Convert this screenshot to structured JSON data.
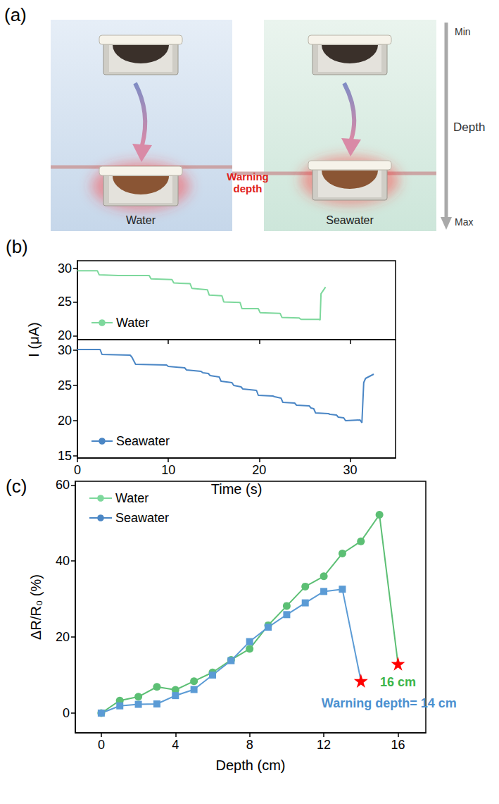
{
  "panel_a": {
    "panel": "(a)",
    "scenes": [
      "Water",
      "Seawater"
    ],
    "warning_label": "Warning depth",
    "depth_axis": {
      "title": "Depth",
      "top_label": "Min",
      "bottom_label": "Max"
    }
  },
  "chart_data": [
    {
      "panel": "(b)",
      "type": "line",
      "xlabel": "Time (s)",
      "ylabel": "I (μA)",
      "xlim": [
        0,
        35
      ],
      "xticks": [
        0,
        10,
        20,
        30
      ],
      "grid": false,
      "legend": "lower left",
      "subplots": [
        {
          "tick_labels": "y",
          "ylim": [
            19.4,
            31.1
          ],
          "yticks": [
            20,
            25,
            30
          ],
          "series": [
            {
              "name": "Water",
              "color": "#7dd89c",
              "x": [
                0,
                2.2,
                2.4,
                4.5,
                7.9,
                8.1,
                10.4,
                10.6,
                12.4,
                12.6,
                14.3,
                14.5,
                15.9,
                16.1,
                17.9,
                18.1,
                19.9,
                20.1,
                22.3,
                22.5,
                24.4,
                24.6,
                26.6,
                26.7,
                26.8,
                27.3
              ],
              "values": [
                29.6,
                29.6,
                29.0,
                28.9,
                28.9,
                28.4,
                28.3,
                27.8,
                27.7,
                27.0,
                26.8,
                26.0,
                25.9,
                25.0,
                24.9,
                24.0,
                24.0,
                23.4,
                23.3,
                22.7,
                22.6,
                22.4,
                22.4,
                22.3,
                26.2,
                27.2
              ]
            }
          ]
        },
        {
          "ylim": [
            14.7,
            31.5
          ],
          "yticks": [
            15,
            20,
            25,
            30
          ],
          "series": [
            {
              "name": "Seawater",
              "color": "#4a86c5",
              "x": [
                0,
                2.5,
                2.7,
                5.8,
                6.0,
                6.4,
                9.8,
                10.0,
                11.8,
                12.0,
                13.6,
                13.8,
                14.4,
                14.6,
                15.6,
                15.8,
                17.0,
                17.2,
                18.0,
                18.2,
                19.7,
                19.9,
                21.5,
                21.7,
                22.4,
                22.6,
                23.9,
                24.1,
                25.5,
                25.7,
                26.0,
                26.2,
                27.6,
                27.8,
                28.5,
                28.7,
                29.3,
                29.5,
                31.1,
                31.3,
                31.5,
                31.7,
                32.6
              ],
              "values": [
                30.1,
                30.1,
                29.4,
                29.3,
                29.0,
                28.0,
                27.9,
                27.7,
                27.5,
                27.2,
                27.0,
                26.8,
                26.7,
                26.4,
                26.2,
                25.6,
                25.4,
                25.0,
                24.8,
                24.5,
                24.3,
                23.6,
                23.5,
                23.4,
                23.2,
                22.6,
                22.5,
                22.2,
                22.1,
                21.8,
                21.7,
                21.1,
                21.0,
                20.9,
                20.8,
                20.5,
                20.4,
                20.0,
                20.1,
                19.7,
                25.4,
                26.0,
                26.6
              ]
            }
          ]
        }
      ]
    },
    {
      "panel": "(c)",
      "type": "line",
      "xlabel": "Depth (cm)",
      "ylabel": "ΔR/R₀ (%)",
      "xlim": [
        -1.4,
        17.5
      ],
      "xticks": [
        0,
        4,
        8,
        12,
        16
      ],
      "ylim": [
        -5.2,
        61
      ],
      "yticks": [
        0,
        20,
        40,
        60
      ],
      "grid": false,
      "legend": "upper left",
      "series": [
        {
          "name": "Water",
          "color": "#5cbf74",
          "marker": "circle",
          "x": [
            0,
            1,
            2,
            3,
            4,
            5,
            6,
            7,
            8,
            9,
            10,
            11,
            12,
            13,
            14,
            15,
            16
          ],
          "values": [
            0,
            3.3,
            4.3,
            6.9,
            6.1,
            8.4,
            10.7,
            14.0,
            16.9,
            23.1,
            28.2,
            33.3,
            36.0,
            42.0,
            45.2,
            52.2,
            13.0
          ]
        },
        {
          "name": "Seawater",
          "color": "#5b9bd5",
          "marker": "square",
          "x": [
            0,
            1,
            2,
            3,
            4,
            5,
            6,
            7,
            8,
            9,
            10,
            11,
            12,
            13,
            14
          ],
          "values": [
            0,
            1.9,
            2.3,
            2.4,
            4.6,
            6.2,
            10.0,
            13.8,
            18.8,
            22.6,
            25.9,
            29.0,
            32.0,
            32.6,
            8.5
          ]
        }
      ],
      "warning": {
        "marker": "star",
        "color": "#ff0000"
      },
      "annotations": [
        {
          "text": "Warning depth= 14 cm",
          "series": "Seawater",
          "x": 14,
          "color": "#4a90d0"
        },
        {
          "text": "16 cm",
          "series": "Water",
          "x": 16,
          "color": "#3cb54a"
        }
      ]
    }
  ]
}
